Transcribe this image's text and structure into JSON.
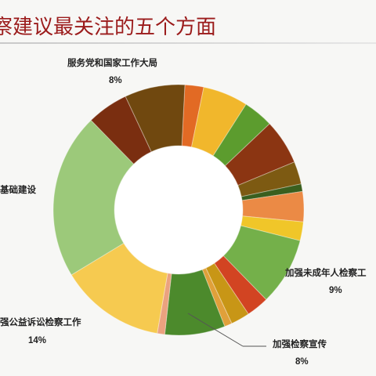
{
  "chart_data": {
    "type": "pie",
    "title": "检察建议最关注的五个方面",
    "donut": true,
    "slices": [
      {
        "value": 2.5,
        "color": "#e26a24"
      },
      {
        "value": 6,
        "color": "#f1b72c"
      },
      {
        "value": 4,
        "color": "#5c9c2e"
      },
      {
        "value": 6,
        "color": "#8b3512"
      },
      {
        "value": 3,
        "color": "#7d5a12"
      },
      {
        "value": 1,
        "color": "#3a5f1e"
      },
      {
        "value": 4,
        "color": "#eb8a45"
      },
      {
        "value": 2.5,
        "color": "#f0c629"
      },
      {
        "value": 9,
        "color": "#74b04a",
        "label": "加强未成年人检察工",
        "pct": "9%"
      },
      {
        "value": 3,
        "color": "#d24422"
      },
      {
        "value": 2.5,
        "color": "#c89616"
      },
      {
        "value": 1,
        "color": "#e0a03a"
      },
      {
        "value": 8,
        "color": "#4c8a2c",
        "label": "加强检察宣传",
        "pct": "8%"
      },
      {
        "value": 1,
        "color": "#eba27f"
      },
      {
        "value": 14,
        "color": "#f6ca50",
        "label": "强公益诉讼检察工作",
        "pct": "14%"
      },
      {
        "value": 22,
        "color": "#9cc97a",
        "label": "基础建设"
      },
      {
        "value": 5.5,
        "color": "#7a2e10"
      },
      {
        "value": 8,
        "color": "#70480f",
        "label": "服务党和国家工作大局",
        "pct": "8%"
      }
    ]
  }
}
